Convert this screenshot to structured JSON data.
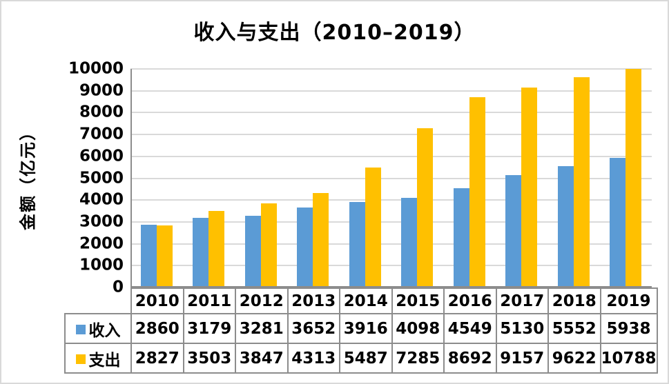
{
  "title": "收入与支出（2010–2019）",
  "y_axis_title": "金额（亿元）",
  "colors": {
    "income": "#5B9BD5",
    "expense": "#FFC000",
    "gridline": "#D9D9D9",
    "axis_line": "#8C8C8C",
    "table_border": "#8C8C8C",
    "text": "#000000",
    "frame": "#D9D9D9",
    "background": "#FFFFFF"
  },
  "chart_data": {
    "type": "bar",
    "title": "收入与支出（2010–2019）",
    "xlabel": "",
    "ylabel": "金额（亿元）",
    "categories": [
      "2010",
      "2011",
      "2012",
      "2013",
      "2014",
      "2015",
      "2016",
      "2017",
      "2018",
      "2019"
    ],
    "series": [
      {
        "key": "income",
        "name": "收入",
        "color": "#5B9BD5",
        "values": [
          2860,
          3179,
          3281,
          3652,
          3916,
          4098,
          4549,
          5130,
          5552,
          5938
        ]
      },
      {
        "key": "expense",
        "name": "支出",
        "color": "#FFC000",
        "values": [
          2827,
          3503,
          3847,
          4313,
          5487,
          7285,
          8692,
          9157,
          9622,
          10788
        ]
      }
    ],
    "ylim": [
      0,
      10000
    ],
    "yticks": [
      0,
      1000,
      2000,
      3000,
      4000,
      5000,
      6000,
      7000,
      8000,
      9000,
      10000
    ],
    "grid": true,
    "legend_position": "data-table-left",
    "data_table": true,
    "note_clipping": "2019 支出 value 10788 exceeds axis max 10000 and is clipped at plot top"
  }
}
